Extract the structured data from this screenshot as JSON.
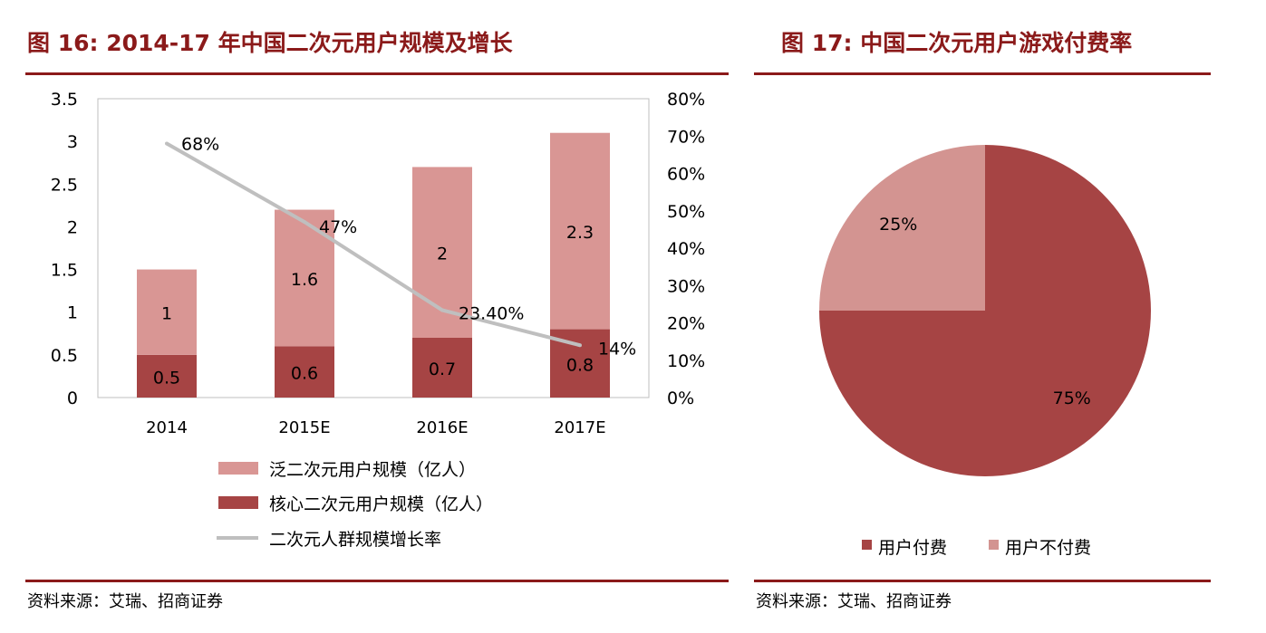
{
  "figures": [
    {
      "title": "图 16:  2014-17 年中国二次元用户规模及增长",
      "source": "资料来源：艾瑞、招商证券"
    },
    {
      "title": "图 17:  中国二次元用户游戏付费率",
      "source": "资料来源：艾瑞、招商证券"
    }
  ],
  "colors": {
    "accent": "#8B1A1A",
    "bar_dark": "#A64444",
    "bar_light": "#D99694",
    "line": "#BFBFBF",
    "pie_paid": "#A64444",
    "pie_unpaid": "#D39491"
  },
  "chart_data": [
    {
      "type": "bar",
      "stacked": true,
      "categories": [
        "2014",
        "2015E",
        "2016E",
        "2017E"
      ],
      "series": [
        {
          "name": "核心二次元用户规模（亿人）",
          "values": [
            0.5,
            0.6,
            0.7,
            0.8
          ],
          "labels": [
            "0.5",
            "0.6",
            "0.7",
            "0.8"
          ]
        },
        {
          "name": "泛二次元用户规模（亿人）",
          "values": [
            1,
            1.6,
            2,
            2.3
          ],
          "labels": [
            "1",
            "1.6",
            "2",
            "2.3"
          ]
        },
        {
          "name": "二次元人群规模增长率",
          "type": "line",
          "axis": "right",
          "values": [
            68,
            47,
            23.4,
            14
          ],
          "labels": [
            "68%",
            "47%",
            "23.40%",
            "14%"
          ]
        }
      ],
      "ylim": [
        0,
        3.5
      ],
      "yticks": [
        "0",
        "0.5",
        "1",
        "1.5",
        "2",
        "2.5",
        "3",
        "3.5"
      ],
      "y2lim": [
        0,
        80
      ],
      "y2ticks": [
        "0%",
        "10%",
        "20%",
        "30%",
        "40%",
        "50%",
        "60%",
        "70%",
        "80%"
      ],
      "legend_position": "bottom",
      "legend_order": [
        "泛二次元用户规模（亿人）",
        "核心二次元用户规模（亿人）",
        "二次元人群规模增长率"
      ]
    },
    {
      "type": "pie",
      "slices": [
        {
          "name": "用户付费",
          "value": 75,
          "label": "75%"
        },
        {
          "name": "用户不付费",
          "value": 25,
          "label": "25%"
        }
      ],
      "legend_position": "bottom"
    }
  ]
}
